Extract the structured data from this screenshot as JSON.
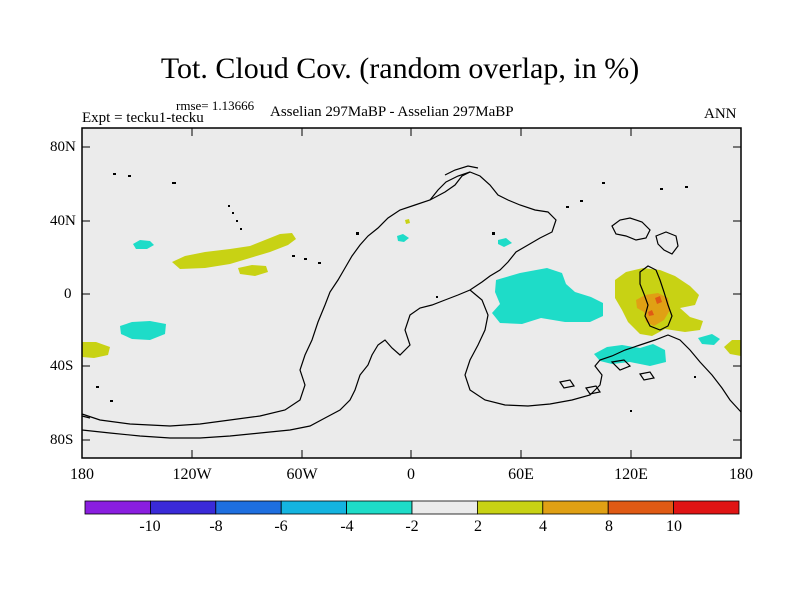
{
  "title": "Tot. Cloud Cov. (random overlap, in %)",
  "rmse": "rmse= 1.13666",
  "expt": "Expt = tecku1-tecku",
  "comparison": "Asselian 297MaBP - Asselian 297MaBP",
  "season": "ANN",
  "lat_ticks": [
    "80N",
    "40N",
    "0",
    "40S",
    "80S"
  ],
  "lon_ticks": [
    "180",
    "120W",
    "60W",
    "0",
    "60E",
    "120E",
    "180"
  ],
  "colorbar": {
    "labels": [
      "-10",
      "-8",
      "-6",
      "-4",
      "-2",
      "2",
      "4",
      "8",
      "10"
    ],
    "colors": [
      "#8a1ee0",
      "#3a2ad8",
      "#1e6fe0",
      "#14b4e0",
      "#1edcc8",
      "#ebebeb",
      "#c8d214",
      "#e0a014",
      "#e05a14",
      "#e01414"
    ]
  },
  "colors": {
    "background_field": "#ebebeb",
    "cyan": "#1edcc8",
    "yellow_green": "#c8d214",
    "orange": "#e0a014",
    "red_orange": "#e05a14"
  }
}
